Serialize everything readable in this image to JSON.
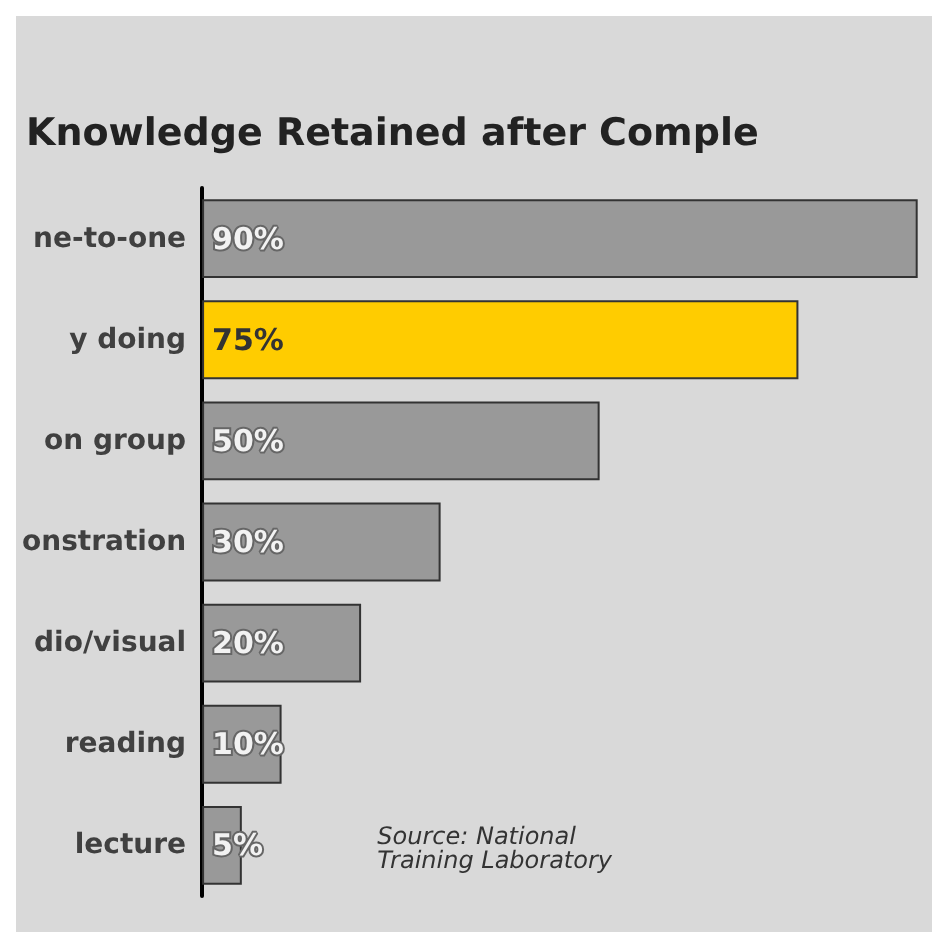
{
  "chart_data": {
    "type": "bar",
    "orientation": "horizontal",
    "title": "Knowledge Retained after Comple",
    "categories": [
      "ne-to-one",
      "y doing",
      "on group",
      "onstration",
      "dio/visual",
      "reading",
      "lecture"
    ],
    "values": [
      90,
      75,
      50,
      30,
      20,
      10,
      5
    ],
    "colors": [
      "#999999",
      "#ffcc00",
      "#999999",
      "#999999",
      "#999999",
      "#999999",
      "#999999"
    ],
    "value_labels": [
      "90%",
      "75%",
      "50%",
      "30%",
      "20%",
      "10%",
      "5%"
    ],
    "annotations": [
      "Source: National\nTraining Laboratory"
    ]
  }
}
